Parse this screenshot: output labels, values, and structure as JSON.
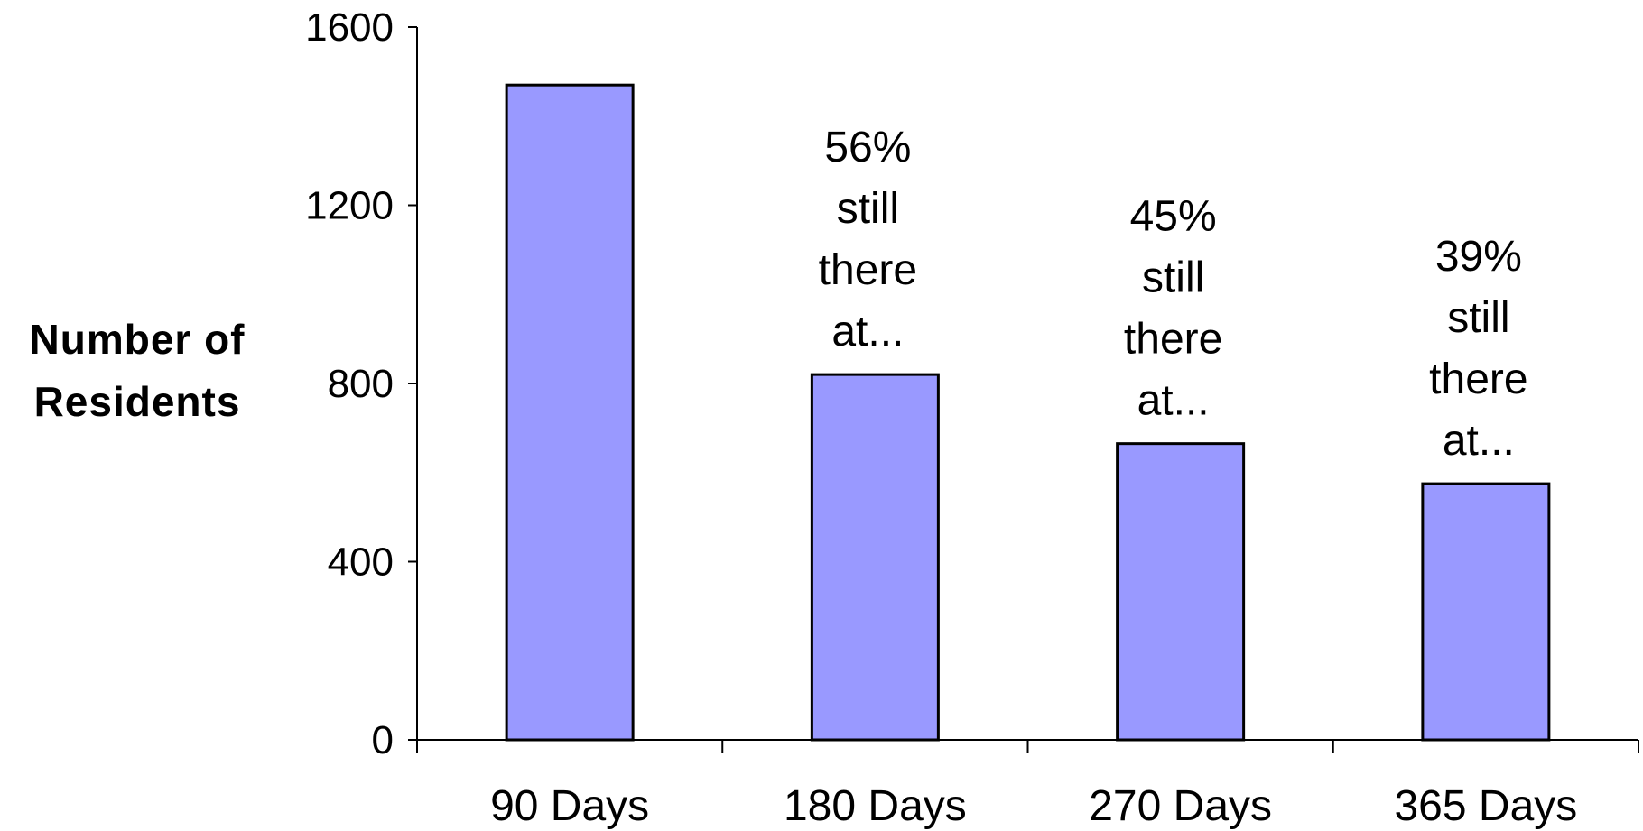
{
  "chart_data": {
    "type": "bar",
    "ylabel_lines": [
      "Number of",
      "Residents"
    ],
    "xlabel": "",
    "categories": [
      "90 Days",
      "180 Days",
      "270 Days",
      "365 Days"
    ],
    "values": [
      1470,
      820,
      665,
      575
    ],
    "annotations": [
      [],
      [
        "56%",
        "still",
        "there",
        "at..."
      ],
      [
        "45%",
        "still",
        "there",
        "at..."
      ],
      [
        "39%",
        "still",
        "there",
        "at..."
      ]
    ],
    "ylim": [
      0,
      1600
    ],
    "yticks": [
      0,
      400,
      800,
      1200,
      1600
    ],
    "grid": false,
    "legend": "none",
    "colors": {
      "bar_fill": "#9999ff",
      "bar_stroke": "#000000",
      "axis": "#000000",
      "background": "#ffffff"
    }
  }
}
